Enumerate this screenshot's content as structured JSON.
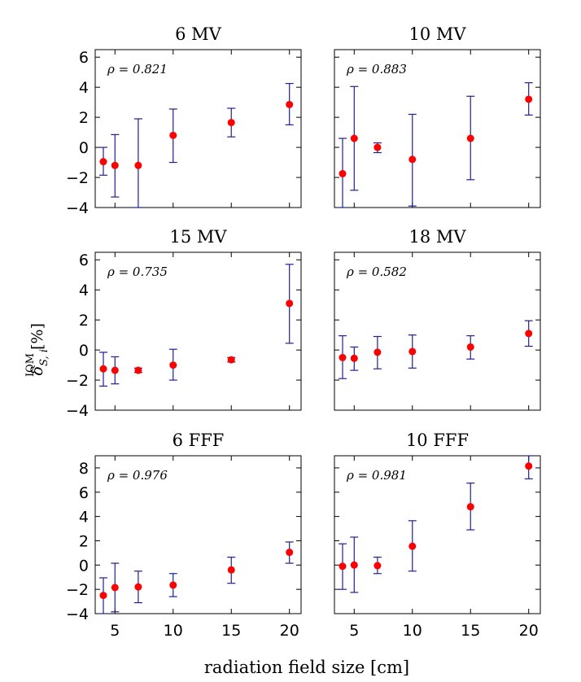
{
  "chart_data": [
    {
      "type": "scatter",
      "title": "6 MV",
      "annotation": "ρ = 0.821",
      "x": [
        4,
        5,
        7,
        10,
        15,
        20
      ],
      "y": [
        -0.95,
        -1.2,
        -1.2,
        0.8,
        1.65,
        2.85
      ],
      "y_err_low": [
        -1.85,
        -3.3,
        -4.0,
        -1.0,
        0.7,
        1.5
      ],
      "y_err_high": [
        0.0,
        0.85,
        1.9,
        2.55,
        2.6,
        4.25
      ],
      "xlim": [
        3.3,
        21
      ],
      "ylim": [
        -4,
        6.5
      ],
      "yticks": [
        -4,
        -2,
        0,
        2,
        4,
        6
      ],
      "xticks": [
        5,
        10,
        15,
        20
      ]
    },
    {
      "type": "scatter",
      "title": "10 MV",
      "annotation": "ρ = 0.883",
      "x": [
        4,
        5,
        7,
        10,
        15,
        20
      ],
      "y": [
        -1.75,
        0.6,
        0.0,
        -0.8,
        0.6,
        3.2
      ],
      "y_err_low": [
        -4.0,
        -2.85,
        -0.35,
        -3.9,
        -2.15,
        2.15
      ],
      "y_err_high": [
        0.6,
        4.05,
        0.3,
        2.2,
        3.4,
        4.3
      ],
      "xlim": [
        3.3,
        21
      ],
      "ylim": [
        -4,
        6.5
      ],
      "yticks": [
        -4,
        -2,
        0,
        2,
        4,
        6
      ],
      "xticks": [
        5,
        10,
        15,
        20
      ]
    },
    {
      "type": "scatter",
      "title": "15 MV",
      "annotation": "ρ = 0.735",
      "x": [
        4,
        5,
        7,
        10,
        15,
        20
      ],
      "y": [
        -1.25,
        -1.35,
        -1.35,
        -1.0,
        -0.65,
        3.1
      ],
      "y_err_low": [
        -2.4,
        -2.25,
        -1.5,
        -2.0,
        -0.8,
        0.45
      ],
      "y_err_high": [
        -0.15,
        -0.45,
        -1.2,
        0.05,
        -0.5,
        5.7
      ],
      "xlim": [
        3.3,
        21
      ],
      "ylim": [
        -4,
        6.5
      ],
      "yticks": [
        -4,
        -2,
        0,
        2,
        4,
        6
      ],
      "xticks": [
        5,
        10,
        15,
        20
      ]
    },
    {
      "type": "scatter",
      "title": "18 MV",
      "annotation": "ρ = 0.582",
      "x": [
        4,
        5,
        7,
        10,
        15,
        20
      ],
      "y": [
        -0.5,
        -0.55,
        -0.15,
        -0.1,
        0.2,
        1.1
      ],
      "y_err_low": [
        -1.9,
        -1.35,
        -1.25,
        -1.2,
        -0.6,
        0.25
      ],
      "y_err_high": [
        0.95,
        0.2,
        0.9,
        1.0,
        0.95,
        1.95
      ],
      "xlim": [
        3.3,
        21
      ],
      "ylim": [
        -4,
        6.5
      ],
      "yticks": [
        -4,
        -2,
        0,
        2,
        4,
        6
      ],
      "xticks": [
        5,
        10,
        15,
        20
      ]
    },
    {
      "type": "scatter",
      "title": "6 FFF",
      "annotation": "ρ = 0.976",
      "x": [
        4,
        5,
        7,
        10,
        15,
        20
      ],
      "y": [
        -2.5,
        -1.85,
        -1.8,
        -1.65,
        -0.4,
        1.05
      ],
      "y_err_low": [
        -4.0,
        -3.85,
        -3.1,
        -2.6,
        -1.5,
        0.15
      ],
      "y_err_high": [
        -1.05,
        0.15,
        -0.5,
        -0.7,
        0.65,
        1.9
      ],
      "xlim": [
        3.3,
        21
      ],
      "ylim": [
        -4,
        9
      ],
      "yticks": [
        -4,
        -2,
        0,
        2,
        4,
        6,
        8
      ],
      "xticks": [
        5,
        10,
        15,
        20
      ]
    },
    {
      "type": "scatter",
      "title": "10 FFF",
      "annotation": "ρ = 0.981",
      "x": [
        4,
        5,
        7,
        10,
        15,
        20
      ],
      "y": [
        -0.1,
        0.0,
        -0.05,
        1.55,
        4.8,
        8.15
      ],
      "y_err_low": [
        -2.0,
        -2.25,
        -0.7,
        -0.5,
        2.9,
        7.1
      ],
      "y_err_high": [
        1.75,
        2.3,
        0.65,
        3.65,
        6.75,
        9.0
      ],
      "xlim": [
        3.3,
        21
      ],
      "ylim": [
        -4,
        9
      ],
      "yticks": [
        -4,
        -2,
        0,
        2,
        4,
        6,
        8
      ],
      "xticks": [
        5,
        10,
        15,
        20
      ]
    }
  ],
  "xlabel": "radiation field size [cm]",
  "ylabel": {
    "symbol": "δ",
    "subscript": "S, i",
    "superscript": "IQM",
    "unit": "[%]"
  },
  "colors": {
    "marker": "#ff0000",
    "errorbar": "#1f1f8f",
    "axis": "#000000"
  }
}
